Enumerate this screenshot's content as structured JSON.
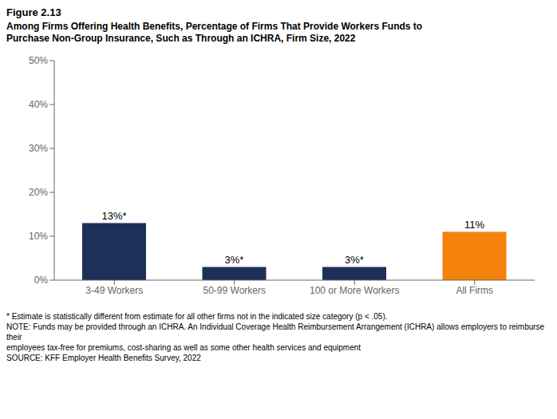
{
  "chart_data": {
    "type": "bar",
    "title": "Figure 2.13",
    "subtitle": [
      "Among Firms Offering Health Benefits, Percentage of Firms That Provide Workers Funds to",
      "Purchase Non-Group Insurance, Such as Through an ICHRA, Firm Size, 2022"
    ],
    "categories": [
      "3-49 Workers",
      "50-99 Workers",
      "100 or More Workers",
      "All Firms"
    ],
    "values": [
      13,
      3,
      3,
      11
    ],
    "value_labels": [
      "13%*",
      "3%*",
      "3%*",
      "11%"
    ],
    "colors": [
      "#1e3057",
      "#1e3057",
      "#1e3057",
      "#f5820a"
    ],
    "ylim": [
      0,
      50
    ],
    "yticks": [
      {
        "value": 0,
        "label": "0%"
      },
      {
        "value": 10,
        "label": "10%"
      },
      {
        "value": 20,
        "label": "20%"
      },
      {
        "value": 30,
        "label": "30%"
      },
      {
        "value": 40,
        "label": "40%"
      },
      {
        "value": 50,
        "label": "50%"
      }
    ],
    "grid": false,
    "annotations": [
      "* Estimate is statistically different from estimate for all other firms not in the indicated size category (p < .05).",
      "NOTE: Funds may be provided through an ICHRA. An Individual Coverage Health Reimbursement Arrangement (ICHRA) allows employers to reimburse their",
      "employees tax-free for premiums, cost-sharing as well as some other health services and equipment",
      "SOURCE: KFF Employer Health Benefits Survey, 2022"
    ]
  }
}
